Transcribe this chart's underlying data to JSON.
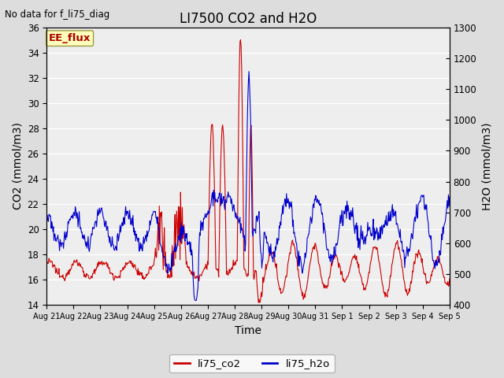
{
  "title": "LI7500 CO2 and H2O",
  "top_left_text": "No data for f_li75_diag",
  "xlabel": "Time",
  "ylabel_left": "CO2 (mmol/m3)",
  "ylabel_right": "H2O (mmol/m3)",
  "ylim_left": [
    14,
    36
  ],
  "ylim_right": [
    400,
    1300
  ],
  "yticks_left": [
    14,
    16,
    18,
    20,
    22,
    24,
    26,
    28,
    30,
    32,
    34,
    36
  ],
  "yticks_right": [
    400,
    500,
    600,
    700,
    800,
    900,
    1000,
    1100,
    1200,
    1300
  ],
  "xtick_labels": [
    "Aug 21",
    "Aug 22",
    "Aug 23",
    "Aug 24",
    "Aug 25",
    "Aug 26",
    "Aug 27",
    "Aug 28",
    "Aug 29",
    "Aug 30",
    "Aug 31",
    "Sep 1",
    "Sep 2",
    "Sep 3",
    "Sep 4",
    "Sep 5"
  ],
  "co2_color": "#cc0000",
  "h2o_color": "#0000cc",
  "legend_label_co2": "li75_co2",
  "legend_label_h2o": "li75_h2o",
  "ee_flux_label": "EE_flux",
  "ee_flux_bg": "#ffffbb",
  "ee_flux_border": "#999944",
  "fig_bg_color": "#dddddd",
  "plot_bg_color": "#eeeeee",
  "grid_color": "#ffffff",
  "font_size": 10,
  "title_font_size": 12,
  "n_days": 15,
  "figwidth": 6.4,
  "figheight": 4.8,
  "dpi": 100
}
